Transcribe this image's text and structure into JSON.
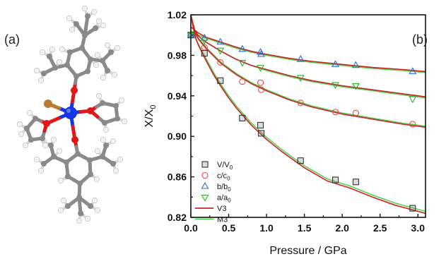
{
  "panels": {
    "a_label": "(a)",
    "b_label": "(b)"
  },
  "molecule": {
    "atom_colors": {
      "carbon": "#8a8a8a",
      "hydrogen": "#f2f2f2",
      "oxygen": "#e01818",
      "metal": "#1536e6",
      "halide": "#b87a30"
    }
  },
  "chart_data": {
    "type": "scatter",
    "xlabel": "Pressure / GPa",
    "ylabel": "X/X",
    "ylabel_sub": "0",
    "xlim": [
      0.0,
      3.1
    ],
    "ylim": [
      0.82,
      1.02
    ],
    "x_ticks": [
      0.0,
      0.5,
      1.0,
      1.5,
      2.0,
      2.5,
      3.0
    ],
    "x_tick_labels": [
      "0.0",
      "0.5",
      "1.0",
      "1.5",
      "2.0",
      "2.5",
      "3.0"
    ],
    "y_ticks": [
      0.82,
      0.86,
      0.9,
      0.94,
      0.98,
      1.02
    ],
    "y_tick_labels": [
      "0.82",
      "0.86",
      "0.90",
      "0.94",
      "0.98",
      "1.02"
    ],
    "grid": false,
    "legend_position": "bottom-left",
    "series": [
      {
        "name": "V/V",
        "name_sub": "0",
        "marker": "square",
        "color": "#333333",
        "points": [
          {
            "x": 0.0,
            "y": 1.0
          },
          {
            "x": 0.18,
            "y": 0.982
          },
          {
            "x": 0.39,
            "y": 0.955
          },
          {
            "x": 0.68,
            "y": 0.918
          },
          {
            "x": 0.92,
            "y": 0.911
          },
          {
            "x": 0.93,
            "y": 0.903
          },
          {
            "x": 1.45,
            "y": 0.876
          },
          {
            "x": 1.91,
            "y": 0.857
          },
          {
            "x": 2.18,
            "y": 0.855
          },
          {
            "x": 2.93,
            "y": 0.829
          }
        ]
      },
      {
        "name": "c/c",
        "name_sub": "0",
        "marker": "circle",
        "color": "#e84848",
        "points": [
          {
            "x": 0.0,
            "y": 1.0
          },
          {
            "x": 0.18,
            "y": 0.988
          },
          {
            "x": 0.39,
            "y": 0.973
          },
          {
            "x": 0.68,
            "y": 0.954
          },
          {
            "x": 0.92,
            "y": 0.953
          },
          {
            "x": 0.93,
            "y": 0.946
          },
          {
            "x": 1.45,
            "y": 0.933
          },
          {
            "x": 1.91,
            "y": 0.924
          },
          {
            "x": 2.18,
            "y": 0.923
          },
          {
            "x": 2.93,
            "y": 0.912
          }
        ]
      },
      {
        "name": "b/b",
        "name_sub": "0",
        "marker": "triangle-up",
        "color": "#2a6be0",
        "points": [
          {
            "x": 0.0,
            "y": 1.0
          },
          {
            "x": 0.18,
            "y": 0.997
          },
          {
            "x": 0.39,
            "y": 0.993
          },
          {
            "x": 0.68,
            "y": 0.986
          },
          {
            "x": 0.92,
            "y": 0.983
          },
          {
            "x": 0.93,
            "y": 0.981
          },
          {
            "x": 1.45,
            "y": 0.976
          },
          {
            "x": 1.91,
            "y": 0.971
          },
          {
            "x": 2.18,
            "y": 0.97
          },
          {
            "x": 2.93,
            "y": 0.964
          }
        ]
      },
      {
        "name": "a/a",
        "name_sub": "0",
        "marker": "triangle-down",
        "color": "#2fae2f",
        "points": [
          {
            "x": 0.0,
            "y": 1.0
          },
          {
            "x": 0.18,
            "y": 0.995
          },
          {
            "x": 0.39,
            "y": 0.985
          },
          {
            "x": 0.68,
            "y": 0.973
          },
          {
            "x": 0.92,
            "y": 0.968
          },
          {
            "x": 1.45,
            "y": 0.958
          },
          {
            "x": 1.91,
            "y": 0.951
          },
          {
            "x": 2.18,
            "y": 0.95
          },
          {
            "x": 2.93,
            "y": 0.937
          }
        ]
      }
    ],
    "fits": [
      {
        "name": "V3",
        "color": "#cc2222",
        "curves": [
          {
            "x": [
              0.0,
              0.05,
              0.1,
              0.2,
              0.3,
              0.4,
              0.5,
              0.6,
              0.8,
              1.0,
              1.2,
              1.5,
              1.8,
              2.1,
              2.4,
              2.7,
              3.0,
              3.1
            ],
            "y": [
              1.02,
              1.0,
              0.99,
              0.975,
              0.961,
              0.949,
              0.938,
              0.928,
              0.911,
              0.897,
              0.885,
              0.869,
              0.856,
              0.849,
              0.84,
              0.832,
              0.826,
              0.824
            ]
          },
          {
            "x": [
              0.0,
              0.05,
              0.1,
              0.2,
              0.4,
              0.6,
              0.8,
              1.0,
              1.3,
              1.6,
              2.0,
              2.4,
              2.8,
              3.1
            ],
            "y": [
              1.02,
              1.003,
              0.996,
              0.987,
              0.972,
              0.961,
              0.952,
              0.945,
              0.936,
              0.929,
              0.922,
              0.917,
              0.912,
              0.909
            ]
          },
          {
            "x": [
              0.0,
              0.05,
              0.1,
              0.2,
              0.4,
              0.6,
              0.8,
              1.0,
              1.3,
              1.6,
              2.0,
              2.4,
              2.8,
              3.1
            ],
            "y": [
              1.02,
              1.005,
              0.999,
              0.993,
              0.984,
              0.976,
              0.97,
              0.966,
              0.96,
              0.955,
              0.95,
              0.946,
              0.942,
              0.939
            ]
          },
          {
            "x": [
              0.0,
              0.1,
              0.2,
              0.4,
              0.6,
              0.8,
              1.0,
              1.3,
              1.6,
              2.0,
              2.4,
              2.8,
              3.1
            ],
            "y": [
              1.008,
              1.002,
              0.998,
              0.993,
              0.988,
              0.984,
              0.981,
              0.977,
              0.974,
              0.971,
              0.968,
              0.966,
              0.964
            ]
          }
        ]
      },
      {
        "name": "M3",
        "color": "#55d055",
        "curves": [
          {
            "x": [
              0.0,
              0.05,
              0.1,
              0.2,
              0.3,
              0.4,
              0.5,
              0.6,
              0.8,
              1.0,
              1.2,
              1.5,
              1.8,
              2.1,
              2.4,
              2.7,
              3.0,
              3.1
            ],
            "y": [
              1.004,
              0.998,
              0.991,
              0.977,
              0.963,
              0.951,
              0.94,
              0.93,
              0.913,
              0.899,
              0.887,
              0.871,
              0.858,
              0.851,
              0.842,
              0.834,
              0.828,
              0.826
            ]
          },
          {
            "x": [
              0.0,
              0.1,
              0.2,
              0.4,
              0.6,
              0.8,
              1.0,
              1.3,
              1.6,
              2.0,
              2.4,
              2.8,
              3.1
            ],
            "y": [
              1.004,
              0.997,
              0.988,
              0.973,
              0.962,
              0.953,
              0.946,
              0.937,
              0.93,
              0.923,
              0.918,
              0.913,
              0.91
            ]
          },
          {
            "x": [
              0.0,
              0.1,
              0.2,
              0.4,
              0.6,
              0.8,
              1.0,
              1.3,
              1.6,
              2.0,
              2.4,
              2.8,
              3.1
            ],
            "y": [
              1.004,
              0.999,
              0.993,
              0.984,
              0.976,
              0.97,
              0.965,
              0.959,
              0.954,
              0.949,
              0.945,
              0.941,
              0.938
            ]
          },
          {
            "x": [
              0.0,
              0.1,
              0.2,
              0.4,
              0.6,
              0.8,
              1.0,
              1.3,
              1.6,
              2.0,
              2.4,
              2.8,
              3.1
            ],
            "y": [
              1.004,
              1.0,
              0.997,
              0.992,
              0.987,
              0.983,
              0.98,
              0.976,
              0.973,
              0.97,
              0.967,
              0.965,
              0.963
            ]
          }
        ]
      }
    ]
  }
}
